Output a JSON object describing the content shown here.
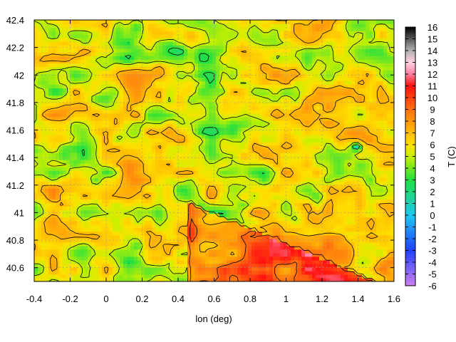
{
  "chart_data": {
    "type": "heatmap",
    "title": "",
    "xlabel": "lon (deg)",
    "ylabel": "",
    "colorbar_label": "T (C)",
    "x_range": [
      -0.4,
      1.6
    ],
    "y_range": [
      40.5,
      42.4
    ],
    "x_ticks": [
      "-0.4",
      "-0.2",
      "0",
      "0.2",
      "0.4",
      "0.6",
      "0.8",
      "1",
      "1.2",
      "1.4",
      "1.6"
    ],
    "x_tick_values": [
      -0.4,
      -0.2,
      0,
      0.2,
      0.4,
      0.6,
      0.8,
      1.0,
      1.2,
      1.4,
      1.6
    ],
    "y_ticks": [
      "40.6",
      "40.8",
      "41",
      "41.2",
      "41.4",
      "41.6",
      "41.8",
      "42",
      "42.2",
      "42.4"
    ],
    "y_tick_values": [
      40.6,
      40.8,
      41.0,
      41.2,
      41.4,
      41.6,
      41.8,
      42.0,
      42.2,
      42.4
    ],
    "colorbar_range": [
      -6,
      16
    ],
    "colorbar_ticks": [
      "16",
      "15",
      "14",
      "13",
      "12",
      "11",
      "10",
      "9",
      "8",
      "7",
      "6",
      "5",
      "4",
      "3",
      "2",
      "1",
      "0",
      "-1",
      "-2",
      "-3",
      "-4",
      "-5",
      "-6"
    ],
    "colorbar_tick_values": [
      16,
      15,
      14,
      13,
      12,
      11,
      10,
      9,
      8,
      7,
      6,
      5,
      4,
      3,
      2,
      1,
      0,
      -1,
      -2,
      -3,
      -4,
      -5,
      -6
    ],
    "colormap": [
      {
        "t": -6,
        "color": "#d080f0"
      },
      {
        "t": -3,
        "color": "#2040ff"
      },
      {
        "t": 0,
        "color": "#20c8f0"
      },
      {
        "t": 3,
        "color": "#20e040"
      },
      {
        "t": 5,
        "color": "#c8f000"
      },
      {
        "t": 6,
        "color": "#ffe000"
      },
      {
        "t": 9,
        "color": "#ff7010"
      },
      {
        "t": 11,
        "color": "#ff1010"
      },
      {
        "t": 12,
        "color": "#ff80a0"
      },
      {
        "t": 13,
        "color": "#ffd0e0"
      },
      {
        "t": 14,
        "color": "#b0b0b0"
      },
      {
        "t": 16,
        "color": "#000000"
      }
    ],
    "grid": true,
    "contours": true
  }
}
